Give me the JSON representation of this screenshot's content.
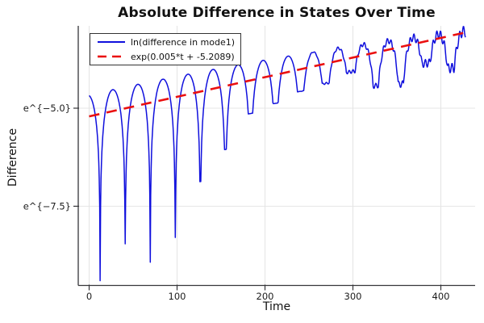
{
  "window": {
    "background": "#ffffff"
  },
  "chart": {
    "title": "Absolute Difference in States Over Time",
    "xlabel": "Time",
    "ylabel": "Difference"
  },
  "legend": {
    "position": "top-left",
    "entries": [
      {
        "label": "ln(difference in mode1)",
        "color": "#1010dd",
        "line_style": "solid"
      },
      {
        "label": "exp(0.005*t + -5.2089)",
        "color": "#ea1010",
        "line_style": "dashed"
      }
    ]
  },
  "colors": {
    "series_blue": "#1010dd",
    "series_red": "#ea1010",
    "grid": "#e4e4e4",
    "spine": "#36363a",
    "tick_text": "#1c1c1c",
    "background": "#ffffff"
  },
  "chart_data": {
    "type": "line",
    "title": "Absolute Difference in States Over Time",
    "xlabel": "Time",
    "ylabel": "Difference",
    "y_scale": "log-e (tick labels show e^{v})",
    "xlim": [
      -12.4,
      439
    ],
    "ylim_ln": [
      -9.52,
      -2.9
    ],
    "grid": true,
    "legend_position": "top-left",
    "x_ticks": [
      {
        "value": 0,
        "label": "0"
      },
      {
        "value": 100,
        "label": "100"
      },
      {
        "value": 200,
        "label": "200"
      },
      {
        "value": 300,
        "label": "300"
      },
      {
        "value": 400,
        "label": "400"
      }
    ],
    "y_ticks": [
      {
        "value": -5.0,
        "label": "e^{−5.0}"
      },
      {
        "value": -7.5,
        "label": "e^{−7.5}"
      }
    ],
    "series": [
      {
        "name": "ln(difference in mode1)",
        "color": "#1010dd",
        "style": "solid",
        "width": 1.5,
        "kind": "model",
        "model": {
          "formula": "v(t) = env(t) + max( ln|sin(pi*(t-first_zero)/half_period)| , -dip_depths[k] ) + wiggle(t); k = round((t-first_zero)/half_period)",
          "env": {
            "a": -4.66,
            "b": 0.005,
            "c": -2.8e-06
          },
          "first_zero": 12.5,
          "half_period": 28.5,
          "dip_depths": [
            4.8,
            4.0,
            4.6,
            4.1,
            2.8,
            2.1,
            1.3,
            1.15,
            0.95,
            0.85,
            0.65,
            1.1,
            1.15,
            0.7,
            0.9
          ],
          "wiggle": {
            "amp": 0.13,
            "start": 235,
            "freq": 1.45
          },
          "t_range": [
            0,
            428
          ],
          "dt": 0.5
        }
      },
      {
        "name": "exp(0.005*t + -5.2089)",
        "color": "#ea1010",
        "style": "dashed",
        "width": 2.6,
        "kind": "linear_in_ln",
        "slope": 0.005,
        "intercept": -5.2089,
        "t_range": [
          0,
          430
        ]
      }
    ]
  }
}
